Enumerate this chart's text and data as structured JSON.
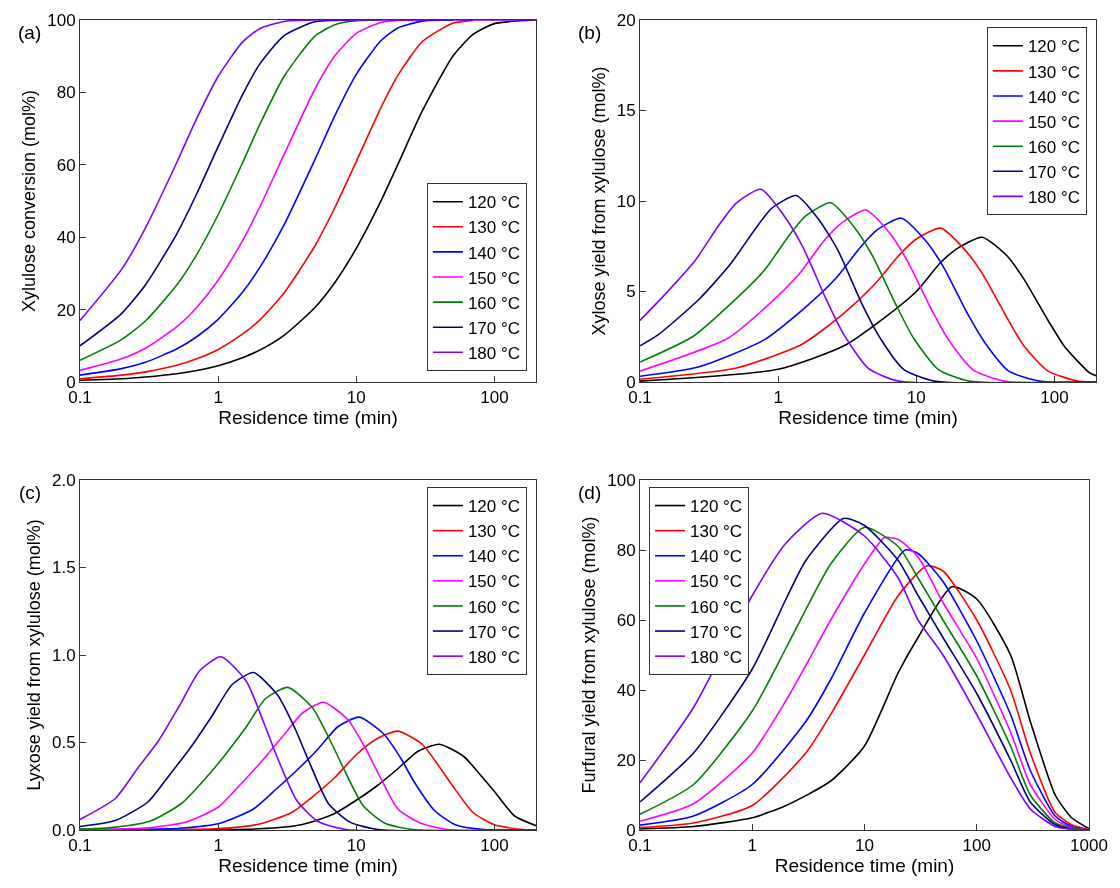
{
  "chart_data": [
    {
      "type": "line",
      "annotations": [
        "(a)"
      ],
      "xlabel": "Residence time (min)",
      "ylabel": "Xylulose conversion (mol%)",
      "log": "x",
      "grid": false,
      "legend": "bottom right",
      "xlim": [
        0.1,
        200
      ],
      "xticks": [
        0.1,
        1,
        10,
        100
      ],
      "ylim": [
        0,
        100
      ],
      "yticks": [
        0,
        20,
        40,
        60,
        80,
        100
      ],
      "x": [
        0.1,
        0.2,
        0.3,
        0.5,
        0.7,
        1,
        1.5,
        2,
        3,
        5,
        7,
        10,
        15,
        20,
        30,
        50,
        70,
        100,
        200
      ],
      "series": [
        {
          "name": "120 °C",
          "color": "#000000",
          "values": [
            0.5,
            0.9,
            1.4,
            2.3,
            3.2,
            4.5,
            6.7,
            8.8,
            12.9,
            20.5,
            27.5,
            36.9,
            49.8,
            60.1,
            74.8,
            90,
            96,
            99,
            100
          ]
        },
        {
          "name": "130 °C",
          "color": "#ff0000",
          "values": [
            0.9,
            1.9,
            2.8,
            4.6,
            6.4,
            9,
            13.2,
            17.1,
            24.6,
            37.5,
            48.2,
            60.9,
            75.6,
            84.7,
            94,
            99.1,
            99.9,
            null,
            null
          ]
        },
        {
          "name": "140 °C",
          "color": "#0000ff",
          "values": [
            1.9,
            3.7,
            5.5,
            9.1,
            12.5,
            17.3,
            24.8,
            31.6,
            43.4,
            61.3,
            73.6,
            85,
            94.2,
            97.8,
            99.7,
            100,
            null,
            null,
            null
          ]
        },
        {
          "name": "150 °C",
          "color": "#ff00ff",
          "values": [
            3.2,
            6.4,
            9.4,
            15.2,
            20.6,
            28.1,
            39,
            48.3,
            62.8,
            80.8,
            90.1,
            96.3,
            99.3,
            99.9,
            100,
            null,
            null,
            null,
            null
          ]
        },
        {
          "name": "160 °C",
          "color": "#008000",
          "values": [
            6,
            11.7,
            17,
            26.7,
            35.2,
            46.2,
            60.5,
            71.1,
            84.4,
            95.5,
            98.7,
            99.8,
            100,
            null,
            null,
            null,
            null,
            null,
            null
          ]
        },
        {
          "name": "170 °C",
          "color": "#000080",
          "values": [
            10,
            18.9,
            27,
            40.8,
            52,
            65,
            79.3,
            87.8,
            95.7,
            99.5,
            99.9,
            100,
            null,
            null,
            null,
            null,
            null,
            null,
            null
          ]
        },
        {
          "name": "180 °C",
          "color": "#8000ff",
          "values": [
            17,
            31.1,
            42.8,
            60.5,
            72.8,
            84.4,
            93.9,
            97.6,
            99.6,
            100,
            100,
            100,
            100,
            100,
            100,
            100,
            100,
            100,
            100
          ]
        }
      ]
    },
    {
      "type": "line",
      "annotations": [
        "(b)"
      ],
      "xlabel": "Residence time (min)",
      "ylabel": "Xylose yield from xylulose (mol%)",
      "log": "x",
      "grid": false,
      "legend": "top right",
      "xlim": [
        0.1,
        200
      ],
      "xticks": [
        0.1,
        1,
        10,
        100
      ],
      "ylim": [
        0,
        20
      ],
      "yticks": [
        0,
        5,
        10,
        15,
        20
      ],
      "series": [
        {
          "name": "120 °C",
          "color": "#000000",
          "x": [
            0.1,
            1,
            3,
            6,
            10,
            15,
            20,
            30,
            45,
            60,
            90,
            120,
            180,
            200
          ],
          "values": [
            0.05,
            0.7,
            2,
            3.6,
            5,
            6.6,
            7.4,
            8,
            7,
            5.7,
            3.4,
            1.9,
            0.5,
            0.35
          ]
        },
        {
          "name": "130 °C",
          "color": "#ff0000",
          "x": [
            0.1,
            0.5,
            1.5,
            3,
            5,
            7.5,
            10,
            15,
            22.5,
            30,
            45,
            60,
            90,
            150,
            200
          ],
          "values": [
            0.15,
            0.77,
            2.1,
            3.8,
            5.4,
            7,
            7.9,
            8.5,
            7.3,
            6,
            3.6,
            2,
            0.6,
            0.04,
            0
          ]
        },
        {
          "name": "140 °C",
          "color": "#0000ff",
          "x": [
            0.1,
            0.26,
            0.78,
            1.56,
            2.6,
            3.9,
            5.2,
            7.8,
            11.7,
            15.6,
            23.4,
            31.2,
            46.8,
            78,
            200
          ],
          "values": [
            0.32,
            0.81,
            2.3,
            4.1,
            5.7,
            7.4,
            8.4,
            9.05,
            7.8,
            6.4,
            3.8,
            2.2,
            0.6,
            0.05,
            0
          ]
        },
        {
          "name": "150 °C",
          "color": "#ff00ff",
          "x": [
            0.1,
            0.43,
            0.86,
            1.43,
            2.15,
            2.9,
            4.3,
            6.45,
            8.6,
            12.9,
            17.2,
            25.8,
            43,
            200
          ],
          "values": [
            0.6,
            2.4,
            4.3,
            6,
            7.8,
            8.8,
            9.5,
            8.2,
            6.7,
            4,
            2.3,
            0.67,
            0.05,
            0
          ]
        },
        {
          "name": "160 °C",
          "color": "#008000",
          "x": [
            0.1,
            0.24,
            0.48,
            0.8,
            1.2,
            1.6,
            2.4,
            3.6,
            4.8,
            7.2,
            9.6,
            14.4,
            24,
            200
          ],
          "values": [
            1.1,
            2.5,
            4.5,
            6.2,
            8.1,
            9.2,
            9.9,
            8.5,
            7,
            4.2,
            2.4,
            0.7,
            0.05,
            0
          ]
        },
        {
          "name": "170 °C",
          "color": "#000080",
          "x": [
            0.1,
            0.135,
            0.27,
            0.45,
            0.675,
            0.9,
            1.35,
            2,
            2.7,
            4.05,
            5.4,
            8.1,
            13.5,
            200
          ],
          "values": [
            2,
            2.6,
            4.6,
            6.5,
            8.4,
            9.6,
            10.3,
            8.9,
            7.3,
            4.3,
            2.5,
            0.7,
            0.05,
            0
          ]
        },
        {
          "name": "180 °C",
          "color": "#8000ff",
          "x": [
            0.1,
            0.15,
            0.25,
            0.375,
            0.5,
            0.75,
            1.1,
            1.5,
            2.25,
            3,
            4.5,
            7.5,
            200
          ],
          "values": [
            3.4,
            4.8,
            6.7,
            8.7,
            9.9,
            10.65,
            9.2,
            7.5,
            4.5,
            2.6,
            0.75,
            0.05,
            0
          ]
        }
      ]
    },
    {
      "type": "line",
      "annotations": [
        "(c)"
      ],
      "xlabel": "Residence time (min)",
      "ylabel": "Lyxose yield from xylulose (mol%)",
      "log": "x",
      "grid": false,
      "legend": "top right",
      "xlim": [
        0.1,
        200
      ],
      "xticks": [
        0.1,
        1,
        10,
        100
      ],
      "ylim": [
        0,
        2
      ],
      "yticks": [
        {
          "value": 0,
          "label": "0.0"
        },
        {
          "value": 0.5,
          "label": "0.5"
        },
        {
          "value": 1,
          "label": "1.0"
        },
        {
          "value": 1.5,
          "label": "1.5"
        },
        {
          "value": 2,
          "label": "2.0"
        }
      ],
      "series": [
        {
          "name": "120 °C",
          "color": "#000000",
          "x": [
            0.1,
            2,
            4,
            6.8,
            10,
            14,
            20,
            28,
            40,
            60,
            80,
            100,
            140,
            200
          ],
          "values": [
            0,
            0.007,
            0.03,
            0.09,
            0.17,
            0.25,
            0.35,
            0.45,
            0.49,
            0.42,
            0.31,
            0.22,
            0.08,
            0.025
          ]
        },
        {
          "name": "130 °C",
          "color": "#ff0000",
          "x": [
            0.1,
            1,
            2,
            3.4,
            5,
            7,
            10,
            14,
            20,
            30,
            40,
            50,
            70,
            100,
            160,
            200
          ],
          "values": [
            0,
            0.008,
            0.034,
            0.1,
            0.2,
            0.3,
            0.43,
            0.52,
            0.565,
            0.49,
            0.36,
            0.25,
            0.1,
            0.03,
            0.002,
            0
          ]
        },
        {
          "name": "140 °C",
          "color": "#0000ff",
          "x": [
            0.1,
            0.525,
            1.05,
            1.8,
            2.6,
            3.7,
            5.25,
            7.35,
            10.5,
            15.75,
            21,
            26,
            37,
            52,
            84,
            200
          ],
          "values": [
            0.002,
            0.01,
            0.04,
            0.12,
            0.23,
            0.34,
            0.46,
            0.59,
            0.645,
            0.55,
            0.41,
            0.28,
            0.11,
            0.03,
            0.002,
            0
          ]
        },
        {
          "name": "150 °C",
          "color": "#ff00ff",
          "x": [
            0.1,
            0.29,
            0.58,
            1,
            1.45,
            2,
            2.9,
            4.1,
            5.8,
            8.7,
            11.6,
            14.5,
            20,
            29,
            46,
            200
          ],
          "values": [
            0.003,
            0.011,
            0.044,
            0.13,
            0.26,
            0.38,
            0.53,
            0.67,
            0.73,
            0.63,
            0.47,
            0.32,
            0.12,
            0.04,
            0.002,
            0
          ]
        },
        {
          "name": "160 °C",
          "color": "#008000",
          "x": [
            0.1,
            0.16,
            0.32,
            0.54,
            0.8,
            1.1,
            1.6,
            2.2,
            3.2,
            4.8,
            6.4,
            8,
            11.2,
            16,
            26,
            200
          ],
          "values": [
            0.005,
            0.012,
            0.05,
            0.15,
            0.29,
            0.42,
            0.59,
            0.75,
            0.815,
            0.7,
            0.52,
            0.36,
            0.14,
            0.04,
            0.002,
            0
          ]
        },
        {
          "name": "170 °C",
          "color": "#000080",
          "x": [
            0.1,
            0.18,
            0.31,
            0.45,
            0.63,
            0.9,
            1.26,
            1.8,
            2.7,
            3.6,
            4.5,
            6.3,
            9,
            14.4,
            200
          ],
          "values": [
            0.02,
            0.054,
            0.16,
            0.32,
            0.47,
            0.65,
            0.83,
            0.9,
            0.77,
            0.58,
            0.4,
            0.15,
            0.045,
            0.003,
            0
          ]
        },
        {
          "name": "180 °C",
          "color": "#8000ff",
          "x": [
            0.1,
            0.18,
            0.26,
            0.37,
            0.525,
            0.735,
            1.05,
            1.6,
            2.1,
            2.6,
            3.7,
            5.25,
            8.4,
            200
          ],
          "values": [
            0.06,
            0.18,
            0.35,
            0.51,
            0.71,
            0.91,
            0.99,
            0.85,
            0.63,
            0.44,
            0.17,
            0.05,
            0.003,
            0
          ]
        }
      ]
    },
    {
      "type": "line",
      "annotations": [
        "(d)"
      ],
      "xlabel": "Residence time (min)",
      "ylabel": "Furfural yield from xylulose (mol%)",
      "log": "x",
      "grid": false,
      "legend": "top left",
      "xlim": [
        0.1,
        1000
      ],
      "xticks": [
        0.1,
        1,
        10,
        100,
        1000
      ],
      "ylim": [
        0,
        100
      ],
      "yticks": [
        0,
        20,
        40,
        60,
        80,
        100
      ],
      "series": [
        {
          "name": "120 °C",
          "color": "#000000",
          "x": [
            0.1,
            0.3,
            1,
            2,
            5,
            10,
            20,
            30,
            60,
            100,
            200,
            300,
            500,
            700,
            1000
          ],
          "values": [
            0.3,
            1,
            3.5,
            7,
            14,
            24,
            45,
            55,
            69.5,
            66,
            50,
            31,
            10,
            3.5,
            0.4
          ]
        },
        {
          "name": "130 °C",
          "color": "#ff0000",
          "x": [
            0.1,
            0.3,
            1,
            3,
            5,
            10,
            20,
            36,
            50,
            100,
            200,
            300,
            500,
            700,
            1000
          ],
          "values": [
            0.7,
            2,
            7,
            22,
            33,
            50,
            67,
            75.5,
            74,
            60,
            40,
            22,
            5,
            1.5,
            0.1
          ]
        },
        {
          "name": "140 °C",
          "color": "#0000ff",
          "x": [
            0.1,
            0.3,
            1,
            3,
            5,
            10,
            23,
            30,
            50,
            100,
            200,
            300,
            500,
            700,
            1000
          ],
          "values": [
            1.4,
            4,
            13,
            31,
            43,
            62,
            80,
            79,
            71,
            54,
            33,
            17,
            4,
            1,
            0
          ]
        },
        {
          "name": "150 °C",
          "color": "#ff00ff",
          "x": [
            0.1,
            0.3,
            1,
            2,
            3,
            5,
            10,
            15,
            20,
            30,
            50,
            100,
            200,
            300,
            500,
            700,
            1000
          ],
          "values": [
            2.5,
            7.5,
            22,
            37,
            47,
            60,
            76,
            83.5,
            83,
            78,
            65,
            49,
            28,
            13,
            3,
            0.7,
            0
          ]
        },
        {
          "name": "160 °C",
          "color": "#008000",
          "x": [
            0.1,
            0.3,
            1,
            2,
            3,
            5,
            10,
            20,
            30,
            50,
            100,
            200,
            300,
            500,
            700,
            1000
          ],
          "values": [
            4.5,
            13,
            34,
            52,
            63,
            76,
            86.5,
            81,
            72,
            60,
            44,
            24,
            10,
            2,
            0.5,
            0
          ]
        },
        {
          "name": "170 °C",
          "color": "#000080",
          "x": [
            0.1,
            0.3,
            1,
            2,
            3,
            6.5,
            10,
            20,
            30,
            50,
            100,
            200,
            300,
            500,
            700,
            1000
          ],
          "values": [
            8,
            22,
            46,
            66,
            77,
            89,
            87,
            77,
            67,
            55,
            39,
            20,
            8,
            1.5,
            0.3,
            0
          ]
        },
        {
          "name": "180 °C",
          "color": "#8000ff",
          "x": [
            0.1,
            0.3,
            1,
            2,
            4.2,
            10,
            20,
            30,
            50,
            100,
            200,
            300,
            500,
            700,
            1000
          ],
          "values": [
            13.5,
            35,
            67,
            82,
            90.5,
            84,
            72,
            60,
            50,
            33,
            15,
            6,
            1,
            0.2,
            0
          ]
        }
      ]
    }
  ]
}
